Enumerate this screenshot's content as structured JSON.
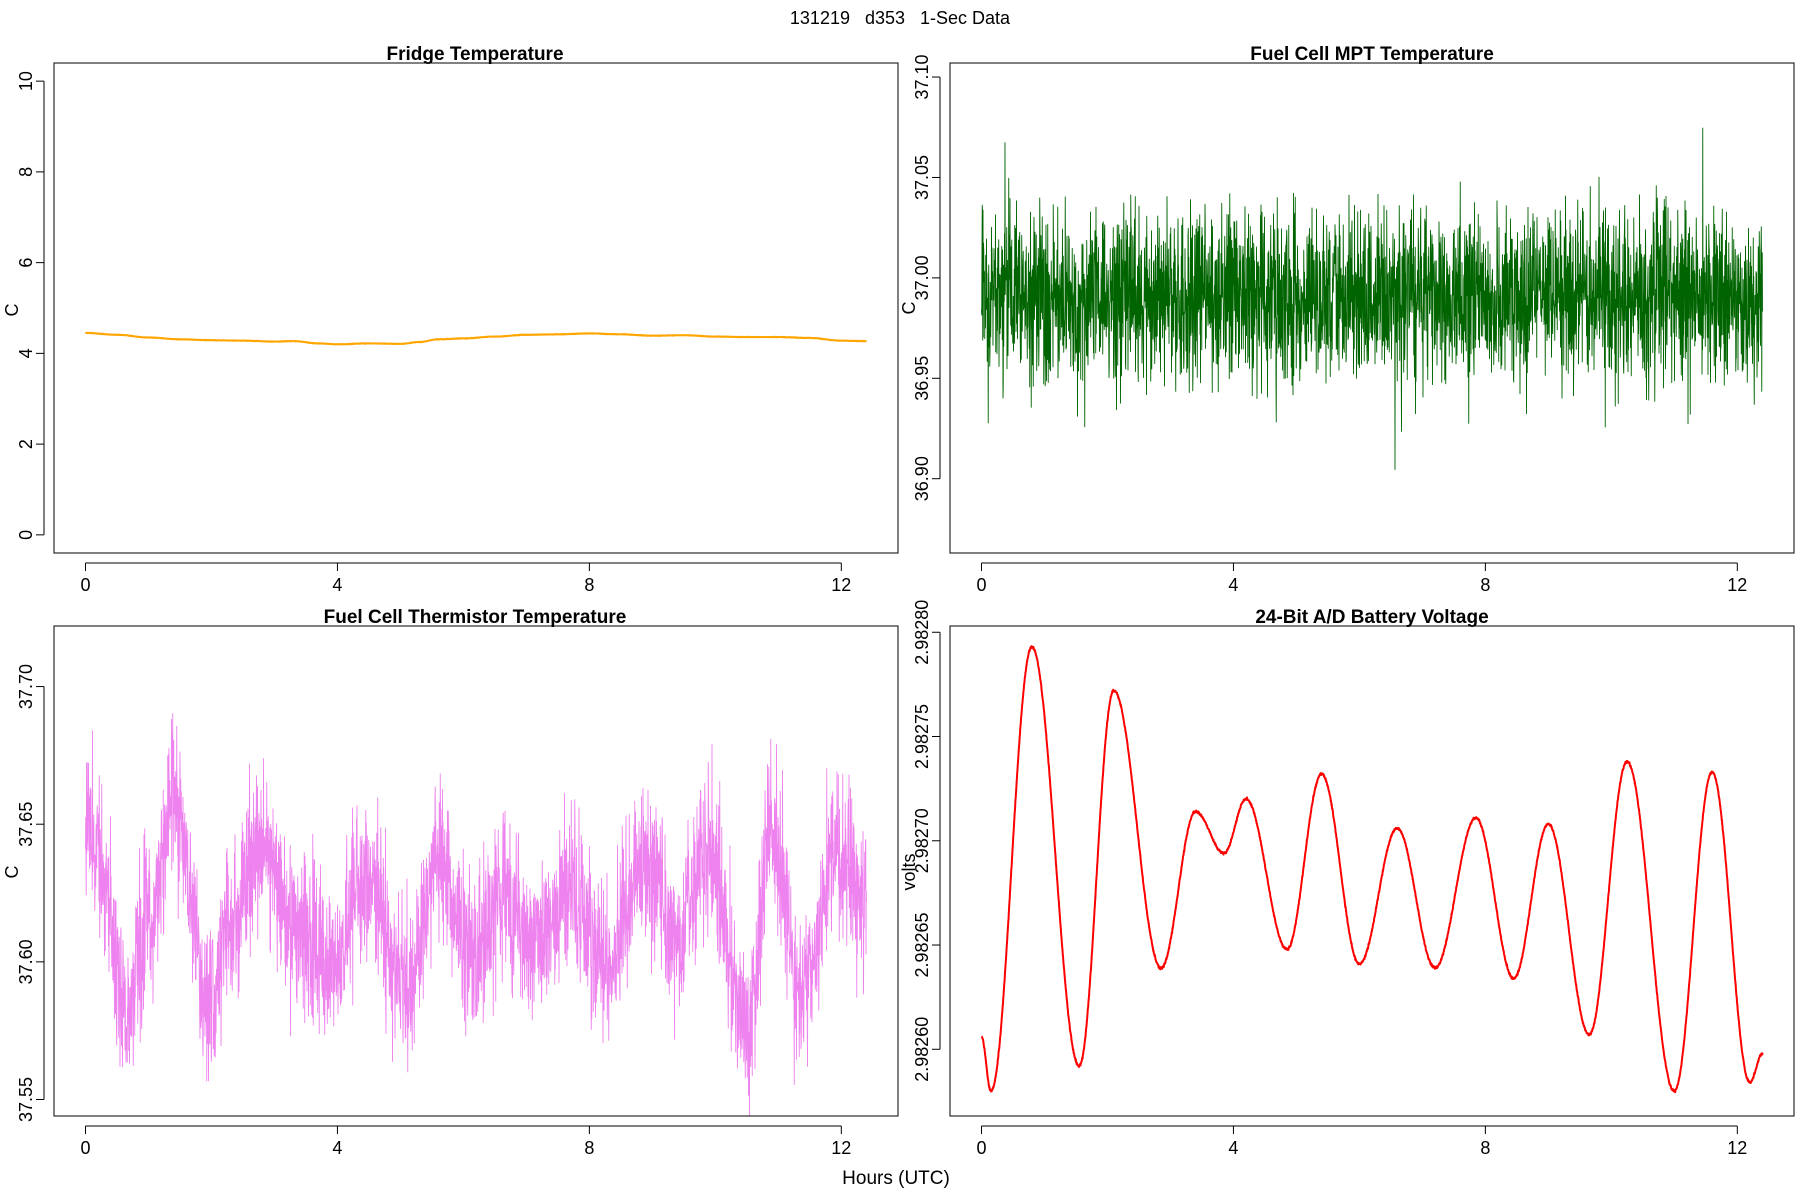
{
  "figure": {
    "suptitle": "131219   d353   1-Sec Data",
    "xlabel": "Hours (UTC)"
  },
  "chart_data": [
    {
      "type": "line",
      "title": "Fridge Temperature",
      "xlabel": "",
      "ylabel": "C",
      "xlim": [
        -0.5,
        12.9
      ],
      "ylim": [
        -0.4,
        10.4
      ],
      "xticks": [
        0,
        4,
        8,
        12
      ],
      "yticks": [
        0,
        2,
        4,
        6,
        8,
        10
      ],
      "ytick_labels": [
        "0",
        "2",
        "4",
        "6",
        "8",
        "10"
      ],
      "grid": false,
      "color": "#ffa500",
      "noise": 0.005,
      "x": [
        0,
        0.5,
        1.0,
        1.5,
        2.0,
        2.5,
        3.0,
        3.3,
        3.7,
        4.0,
        4.5,
        5.0,
        5.3,
        5.6,
        6.0,
        6.5,
        7.0,
        7.5,
        8.0,
        8.5,
        9.0,
        9.5,
        10.0,
        10.5,
        11.0,
        11.5,
        12.0,
        12.4
      ],
      "y": [
        4.45,
        4.41,
        4.35,
        4.31,
        4.29,
        4.28,
        4.26,
        4.27,
        4.22,
        4.2,
        4.22,
        4.21,
        4.25,
        4.31,
        4.33,
        4.37,
        4.41,
        4.42,
        4.44,
        4.42,
        4.39,
        4.4,
        4.37,
        4.36,
        4.36,
        4.34,
        4.28,
        4.27
      ]
    },
    {
      "type": "line",
      "title": "Fuel Cell MPT Temperature",
      "xlabel": "",
      "ylabel": "C",
      "xlim": [
        -0.5,
        12.9
      ],
      "ylim": [
        36.863,
        37.107
      ],
      "xticks": [
        0,
        4,
        8,
        12
      ],
      "yticks": [
        36.9,
        36.95,
        37.0,
        37.05,
        37.1
      ],
      "ytick_labels": [
        "36.90",
        "36.95",
        "37.00",
        "37.05",
        "37.10"
      ],
      "grid": false,
      "color": "#006400",
      "noise": 0.042,
      "x": [
        0,
        12.4
      ],
      "y": [
        36.99,
        36.99
      ]
    },
    {
      "type": "line",
      "title": "Fuel Cell Thermistor Temperature",
      "xlabel": "",
      "ylabel": "C",
      "xlim": [
        -0.5,
        12.9
      ],
      "ylim": [
        37.544,
        37.722
      ],
      "xticks": [
        0,
        4,
        8,
        12
      ],
      "yticks": [
        37.55,
        37.6,
        37.65,
        37.7
      ],
      "ytick_labels": [
        "37.55",
        "37.60",
        "37.65",
        "37.70"
      ],
      "grid": false,
      "color": "#ee82ee",
      "noise": 0.028,
      "x": [
        0,
        0.2,
        0.65,
        1.0,
        1.4,
        1.95,
        2.3,
        2.75,
        3.35,
        3.9,
        4.45,
        5.1,
        5.6,
        6.1,
        6.6,
        7.2,
        7.7,
        8.25,
        8.85,
        9.4,
        9.9,
        10.5,
        10.9,
        11.4,
        11.9,
        12.4
      ],
      "y": [
        37.655,
        37.64,
        37.58,
        37.615,
        37.66,
        37.585,
        37.615,
        37.645,
        37.612,
        37.6,
        37.63,
        37.59,
        37.638,
        37.6,
        37.625,
        37.605,
        37.628,
        37.598,
        37.635,
        37.61,
        37.64,
        37.575,
        37.65,
        37.585,
        37.64,
        37.622
      ]
    },
    {
      "type": "line",
      "title": "24-Bit A/D Battery Voltage",
      "xlabel": "",
      "ylabel": "volts",
      "xlim": [
        -0.5,
        12.9
      ],
      "ylim": [
        2.982568,
        2.982803
      ],
      "xticks": [
        0,
        4,
        8,
        12
      ],
      "yticks": [
        2.9826,
        2.98265,
        2.9827,
        2.98275,
        2.9828
      ],
      "ytick_labels": [
        "2.98260",
        "2.98265",
        "2.98270",
        "2.98275",
        "2.98280"
      ],
      "grid": false,
      "color": "#ff0000",
      "noise": 6e-07,
      "x": [
        0,
        0.15,
        0.8,
        1.55,
        2.1,
        2.85,
        3.4,
        3.85,
        4.2,
        4.85,
        5.4,
        6.0,
        6.6,
        7.2,
        7.85,
        8.45,
        9.0,
        9.65,
        10.25,
        11.0,
        11.6,
        12.2,
        12.4
      ],
      "y": [
        2.982606,
        2.98258,
        2.982793,
        2.982592,
        2.982772,
        2.982639,
        2.982714,
        2.982694,
        2.98272,
        2.982648,
        2.982732,
        2.982641,
        2.982706,
        2.982639,
        2.982711,
        2.982634,
        2.982708,
        2.982607,
        2.982738,
        2.98258,
        2.982733,
        2.982584,
        2.982598
      ]
    }
  ]
}
